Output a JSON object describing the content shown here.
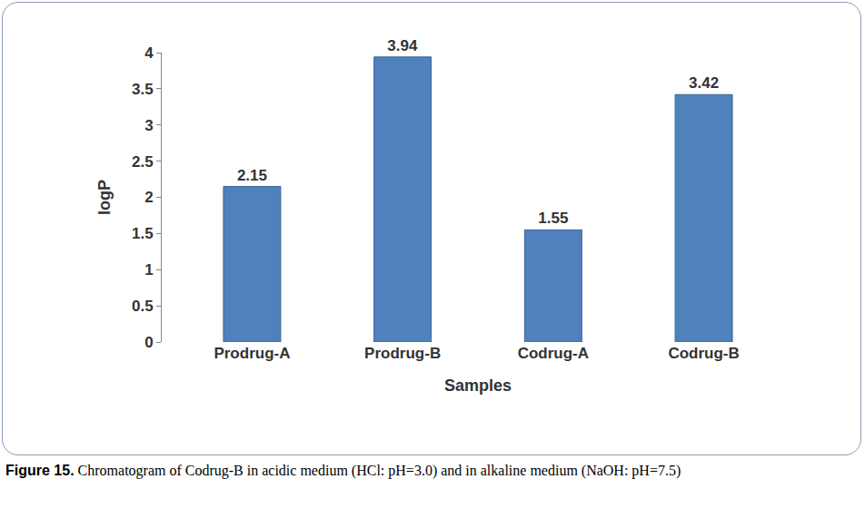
{
  "chart_data": {
    "type": "bar",
    "x_label": "Samples",
    "y_label": "logP",
    "categories": [
      "Prodrug-A",
      "Prodrug-B",
      "Codrug-A",
      "Codrug-B"
    ],
    "values": [
      2.15,
      3.94,
      1.55,
      3.42
    ],
    "color": "#4f81bd",
    "ylim": [
      0,
      4
    ],
    "yticks": [
      0,
      0.5,
      1,
      1.5,
      2,
      2.5,
      3,
      3.5,
      4
    ],
    "grid": false,
    "data_labels": true,
    "caption_label": "Figure 15.",
    "caption": "Chromatogram of Codrug-B in acidic medium (HCl: pH=3.0) and in alkaline medium (NaOH: pH=7.5)"
  }
}
